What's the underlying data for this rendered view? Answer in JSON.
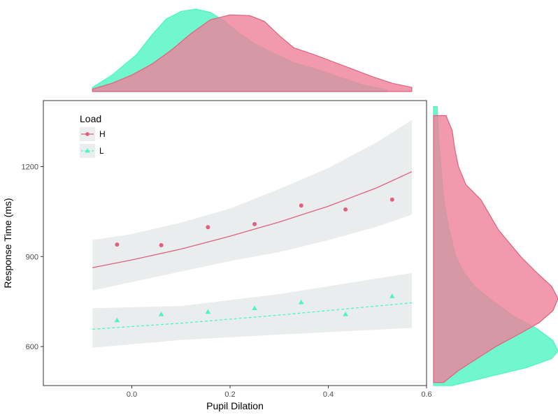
{
  "chart_data": {
    "type": "scatter",
    "xlabel": "Pupil Dilation",
    "ylabel": "Response Time (ms)",
    "xlim": [
      -0.18,
      0.6
    ],
    "ylim": [
      470,
      1420
    ],
    "x_ticks": [
      "0.0",
      "0.2",
      "0.4",
      "0.6"
    ],
    "x_tick_values": [
      0.0,
      0.2,
      0.4,
      0.6
    ],
    "y_ticks": [
      "600",
      "900",
      "1200"
    ],
    "y_tick_values": [
      600,
      900,
      1200
    ],
    "legend": {
      "title": "Load",
      "placement": "top-left"
    },
    "grid": false,
    "series": [
      {
        "name": "H",
        "color": "#e0607e",
        "marker": "circle",
        "line_style": "solid",
        "points": [
          {
            "x": -0.03,
            "y": 940
          },
          {
            "x": 0.06,
            "y": 938
          },
          {
            "x": 0.155,
            "y": 998
          },
          {
            "x": 0.25,
            "y": 1008
          },
          {
            "x": 0.345,
            "y": 1070
          },
          {
            "x": 0.435,
            "y": 1057
          },
          {
            "x": 0.53,
            "y": 1090
          }
        ],
        "fit": [
          {
            "x": -0.08,
            "y": 863
          },
          {
            "x": 0.0,
            "y": 889
          },
          {
            "x": 0.1,
            "y": 925
          },
          {
            "x": 0.2,
            "y": 968
          },
          {
            "x": 0.3,
            "y": 1015
          },
          {
            "x": 0.4,
            "y": 1068
          },
          {
            "x": 0.5,
            "y": 1130
          },
          {
            "x": 0.57,
            "y": 1183
          }
        ],
        "band_upper": [
          {
            "x": -0.08,
            "y": 955
          },
          {
            "x": 0.0,
            "y": 975
          },
          {
            "x": 0.1,
            "y": 1013
          },
          {
            "x": 0.2,
            "y": 1060
          },
          {
            "x": 0.3,
            "y": 1125
          },
          {
            "x": 0.4,
            "y": 1195
          },
          {
            "x": 0.5,
            "y": 1282
          },
          {
            "x": 0.57,
            "y": 1355
          }
        ],
        "band_lower": [
          {
            "x": -0.08,
            "y": 787
          },
          {
            "x": 0.0,
            "y": 815
          },
          {
            "x": 0.1,
            "y": 850
          },
          {
            "x": 0.2,
            "y": 885
          },
          {
            "x": 0.3,
            "y": 915
          },
          {
            "x": 0.4,
            "y": 955
          },
          {
            "x": 0.5,
            "y": 1000
          },
          {
            "x": 0.57,
            "y": 1040
          }
        ],
        "marginal_x": [
          {
            "x": -0.08,
            "d": 0.03
          },
          {
            "x": -0.04,
            "d": 0.1
          },
          {
            "x": 0.0,
            "d": 0.2
          },
          {
            "x": 0.04,
            "d": 0.33
          },
          {
            "x": 0.08,
            "d": 0.5
          },
          {
            "x": 0.12,
            "d": 0.7
          },
          {
            "x": 0.16,
            "d": 0.87
          },
          {
            "x": 0.2,
            "d": 0.93
          },
          {
            "x": 0.24,
            "d": 0.92
          },
          {
            "x": 0.27,
            "d": 0.85
          },
          {
            "x": 0.3,
            "d": 0.68
          },
          {
            "x": 0.33,
            "d": 0.53
          },
          {
            "x": 0.37,
            "d": 0.45
          },
          {
            "x": 0.41,
            "d": 0.36
          },
          {
            "x": 0.45,
            "d": 0.27
          },
          {
            "x": 0.49,
            "d": 0.18
          },
          {
            "x": 0.53,
            "d": 0.1
          },
          {
            "x": 0.57,
            "d": 0.05
          }
        ],
        "marginal_y": [
          {
            "y": 1370,
            "d": 0.1
          },
          {
            "y": 1320,
            "d": 0.15
          },
          {
            "y": 1260,
            "d": 0.17
          },
          {
            "y": 1200,
            "d": 0.2
          },
          {
            "y": 1140,
            "d": 0.26
          },
          {
            "y": 1090,
            "d": 0.38
          },
          {
            "y": 1040,
            "d": 0.45
          },
          {
            "y": 990,
            "d": 0.52
          },
          {
            "y": 950,
            "d": 0.6
          },
          {
            "y": 900,
            "d": 0.7
          },
          {
            "y": 850,
            "d": 0.82
          },
          {
            "y": 800,
            "d": 0.95
          },
          {
            "y": 760,
            "d": 1.0
          },
          {
            "y": 720,
            "d": 0.96
          },
          {
            "y": 680,
            "d": 0.85
          },
          {
            "y": 640,
            "d": 0.68
          },
          {
            "y": 600,
            "d": 0.5
          },
          {
            "y": 560,
            "d": 0.35
          },
          {
            "y": 520,
            "d": 0.2
          },
          {
            "y": 480,
            "d": 0.08
          }
        ]
      },
      {
        "name": "L",
        "color": "#4ef5c0",
        "marker": "triangle",
        "line_style": "dashed",
        "points": [
          {
            "x": -0.03,
            "y": 688
          },
          {
            "x": 0.06,
            "y": 708
          },
          {
            "x": 0.155,
            "y": 716
          },
          {
            "x": 0.25,
            "y": 728
          },
          {
            "x": 0.345,
            "y": 748
          },
          {
            "x": 0.435,
            "y": 708
          },
          {
            "x": 0.53,
            "y": 768
          }
        ],
        "fit": [
          {
            "x": -0.08,
            "y": 658
          },
          {
            "x": 0.1,
            "y": 678
          },
          {
            "x": 0.3,
            "y": 705
          },
          {
            "x": 0.57,
            "y": 746
          }
        ],
        "band_upper": [
          {
            "x": -0.08,
            "y": 728
          },
          {
            "x": 0.1,
            "y": 735
          },
          {
            "x": 0.3,
            "y": 775
          },
          {
            "x": 0.57,
            "y": 845
          }
        ],
        "band_lower": [
          {
            "x": -0.08,
            "y": 596
          },
          {
            "x": 0.1,
            "y": 622
          },
          {
            "x": 0.3,
            "y": 640
          },
          {
            "x": 0.57,
            "y": 662
          }
        ],
        "marginal_x": [
          {
            "x": -0.08,
            "d": 0.05
          },
          {
            "x": -0.04,
            "d": 0.2
          },
          {
            "x": -0.02,
            "d": 0.3
          },
          {
            "x": 0.01,
            "d": 0.45
          },
          {
            "x": 0.04,
            "d": 0.68
          },
          {
            "x": 0.07,
            "d": 0.88
          },
          {
            "x": 0.1,
            "d": 0.97
          },
          {
            "x": 0.13,
            "d": 1.0
          },
          {
            "x": 0.16,
            "d": 0.96
          },
          {
            "x": 0.19,
            "d": 0.85
          },
          {
            "x": 0.22,
            "d": 0.7
          },
          {
            "x": 0.25,
            "d": 0.58
          },
          {
            "x": 0.29,
            "d": 0.46
          },
          {
            "x": 0.33,
            "d": 0.35
          },
          {
            "x": 0.37,
            "d": 0.28
          },
          {
            "x": 0.42,
            "d": 0.18
          },
          {
            "x": 0.47,
            "d": 0.08
          },
          {
            "x": 0.52,
            "d": 0.02
          }
        ],
        "marginal_y": [
          {
            "y": 1400,
            "d": 0.03
          },
          {
            "y": 1300,
            "d": 0.04
          },
          {
            "y": 1200,
            "d": 0.06
          },
          {
            "y": 1100,
            "d": 0.08
          },
          {
            "y": 1000,
            "d": 0.12
          },
          {
            "y": 900,
            "d": 0.18
          },
          {
            "y": 850,
            "d": 0.24
          },
          {
            "y": 800,
            "d": 0.33
          },
          {
            "y": 750,
            "d": 0.48
          },
          {
            "y": 700,
            "d": 0.65
          },
          {
            "y": 660,
            "d": 0.83
          },
          {
            "y": 620,
            "d": 0.96
          },
          {
            "y": 585,
            "d": 1.0
          },
          {
            "y": 560,
            "d": 0.95
          },
          {
            "y": 530,
            "d": 0.75
          },
          {
            "y": 500,
            "d": 0.45
          },
          {
            "y": 470,
            "d": 0.15
          }
        ]
      }
    ]
  }
}
